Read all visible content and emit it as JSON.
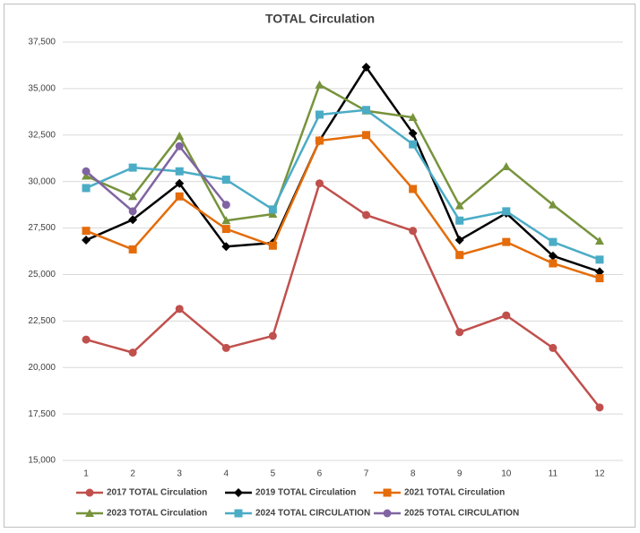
{
  "chart_data": {
    "type": "line",
    "title": "TOTAL Circulation",
    "categories": [
      "1",
      "2",
      "3",
      "4",
      "5",
      "6",
      "7",
      "8",
      "9",
      "10",
      "11",
      "12"
    ],
    "ylim": [
      15000,
      37500
    ],
    "yticks": [
      {
        "value": 15000,
        "label": "15,000"
      },
      {
        "value": 17500,
        "label": "17,500"
      },
      {
        "value": 20000,
        "label": "20,000"
      },
      {
        "value": 22500,
        "label": "22,500"
      },
      {
        "value": 25000,
        "label": "25,000"
      },
      {
        "value": 27500,
        "label": "27,500"
      },
      {
        "value": 30000,
        "label": "30,000"
      },
      {
        "value": 32500,
        "label": "32,500"
      },
      {
        "value": 35000,
        "label": "35,000"
      },
      {
        "value": 37500,
        "label": "37,500"
      }
    ],
    "grid": true,
    "series": [
      {
        "name": "2017 TOTAL Circulation",
        "color": "#c0504d",
        "marker": "circle",
        "values": [
          21500,
          20800,
          23150,
          21050,
          21700,
          29900,
          28200,
          27350,
          21900,
          22800,
          21050,
          17850
        ]
      },
      {
        "name": "2019 TOTAL Circulation",
        "color": "#000000",
        "marker": "diamond",
        "values": [
          26850,
          27950,
          29900,
          26500,
          26700,
          32200,
          36150,
          32600,
          26850,
          28300,
          26000,
          25150
        ]
      },
      {
        "name": "2021 TOTAL Circulation",
        "color": "#e46c0a",
        "marker": "square",
        "values": [
          27350,
          26350,
          29200,
          27450,
          26550,
          32200,
          32500,
          29600,
          26050,
          26750,
          25600,
          24800
        ]
      },
      {
        "name": "2023 TOTAL Circulation",
        "color": "#77933c",
        "marker": "triangle",
        "values": [
          30300,
          29200,
          32450,
          27900,
          28250,
          35200,
          33800,
          33450,
          28700,
          30800,
          28750,
          26800
        ]
      },
      {
        "name": "2024 TOTAL CIRCULATION",
        "color": "#4bacc6",
        "marker": "square",
        "values": [
          29650,
          30750,
          30550,
          30100,
          28500,
          33600,
          33850,
          32000,
          27900,
          28400,
          26750,
          25800
        ]
      },
      {
        "name": "2025 TOTAL CIRCULATION",
        "color": "#8064a2",
        "marker": "circle",
        "values": [
          30550,
          28400,
          31900,
          28750,
          null,
          null,
          null,
          null,
          null,
          null,
          null,
          null
        ]
      }
    ]
  }
}
